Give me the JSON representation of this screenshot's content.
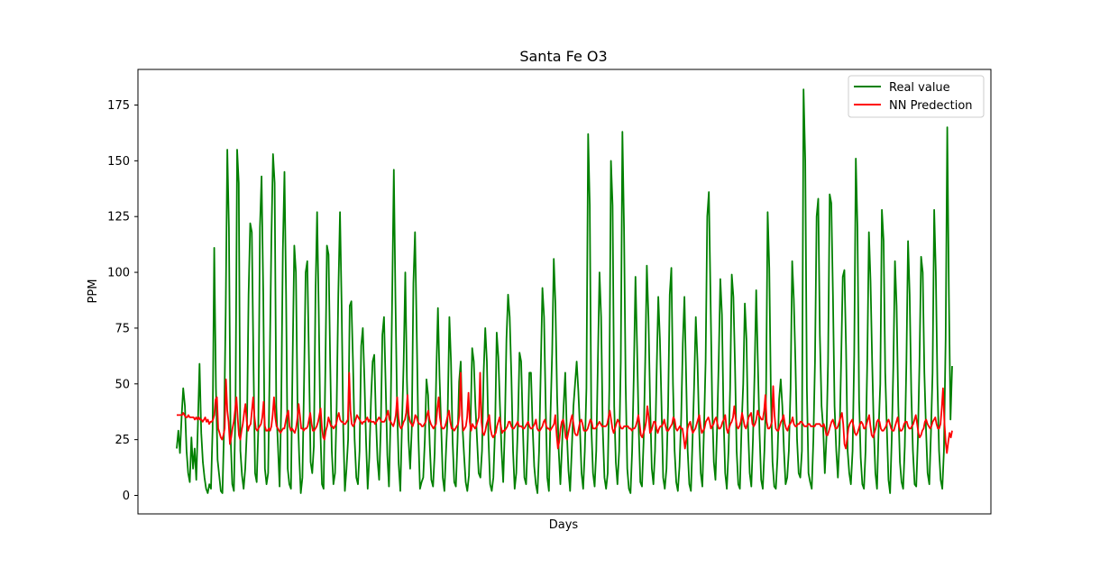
{
  "chart_data": {
    "type": "line",
    "title": "Santa Fe O3",
    "xlabel": "Days",
    "ylabel": "PPM",
    "ylim": [
      -8,
      190
    ],
    "yticks": [
      0,
      25,
      50,
      75,
      100,
      125,
      150,
      175
    ],
    "xticks_visible": false,
    "grid": false,
    "legend_position": "top-right",
    "series": [
      {
        "name": "Real value",
        "color": "#008000",
        "values": [
          21,
          29,
          19,
          35,
          48,
          40,
          20,
          10,
          6,
          26,
          12,
          21,
          7,
          32,
          59,
          28,
          15,
          8,
          3,
          1,
          5,
          3,
          30,
          111,
          48,
          16,
          9,
          2,
          1,
          30,
          82,
          155,
          120,
          27,
          5,
          2,
          40,
          155,
          140,
          20,
          9,
          3,
          12,
          30,
          90,
          122,
          118,
          60,
          10,
          6,
          30,
          120,
          143,
          90,
          12,
          5,
          10,
          60,
          115,
          153,
          140,
          40,
          22,
          4,
          40,
          110,
          145,
          90,
          12,
          5,
          3,
          60,
          112,
          100,
          40,
          18,
          1,
          8,
          50,
          100,
          105,
          60,
          15,
          10,
          22,
          90,
          127,
          83,
          30,
          5,
          3,
          55,
          112,
          108,
          60,
          20,
          5,
          10,
          40,
          90,
          127,
          85,
          30,
          2,
          12,
          25,
          85,
          87,
          60,
          25,
          8,
          5,
          20,
          67,
          75,
          52,
          24,
          3,
          17,
          43,
          60,
          63,
          35,
          16,
          7,
          30,
          72,
          80,
          50,
          18,
          4,
          35,
          90,
          146,
          88,
          40,
          14,
          2,
          33,
          60,
          100,
          52,
          25,
          12,
          30,
          95,
          118,
          75,
          27,
          3,
          6,
          8,
          25,
          52,
          45,
          23,
          7,
          4,
          19,
          55,
          84,
          53,
          31,
          8,
          2,
          20,
          36,
          80,
          60,
          24,
          6,
          4,
          24,
          51,
          60,
          32,
          18,
          6,
          2,
          9,
          33,
          66,
          60,
          40,
          25,
          10,
          8,
          20,
          55,
          75,
          60,
          25,
          5,
          2,
          8,
          30,
          73,
          62,
          40,
          20,
          6,
          30,
          70,
          90,
          80,
          53,
          20,
          3,
          10,
          32,
          64,
          60,
          32,
          8,
          5,
          25,
          55,
          55,
          31,
          13,
          5,
          1,
          20,
          55,
          93,
          80,
          40,
          8,
          2,
          37,
          64,
          106,
          86,
          44,
          20,
          5,
          22,
          40,
          55,
          28,
          11,
          2,
          20,
          40,
          50,
          60,
          47,
          30,
          10,
          3,
          20,
          48,
          162,
          130,
          30,
          10,
          4,
          20,
          60,
          100,
          80,
          30,
          8,
          3,
          10,
          48,
          150,
          130,
          40,
          15,
          5,
          20,
          60,
          163,
          120,
          50,
          12,
          3,
          1,
          20,
          53,
          98,
          66,
          30,
          6,
          4,
          24,
          60,
          103,
          80,
          40,
          12,
          5,
          20,
          56,
          89,
          70,
          40,
          8,
          3,
          12,
          40,
          90,
          102,
          50,
          20,
          6,
          2,
          13,
          35,
          68,
          89,
          55,
          20,
          5,
          2,
          25,
          50,
          80,
          60,
          30,
          10,
          4,
          30,
          60,
          125,
          136,
          90,
          40,
          15,
          7,
          30,
          60,
          97,
          81,
          35,
          10,
          3,
          20,
          48,
          99,
          89,
          58,
          20,
          5,
          3,
          30,
          50,
          86,
          70,
          30,
          10,
          4,
          25,
          55,
          92,
          60,
          28,
          7,
          3,
          20,
          45,
          127,
          102,
          45,
          15,
          4,
          3,
          17,
          43,
          52,
          40,
          20,
          5,
          8,
          20,
          48,
          105,
          88,
          60,
          25,
          10,
          8,
          20,
          182,
          150,
          48,
          10,
          6,
          3,
          25,
          60,
          125,
          133,
          72,
          40,
          30,
          10,
          26,
          60,
          135,
          131,
          90,
          40,
          20,
          8,
          25,
          60,
          98,
          101,
          67,
          20,
          10,
          5,
          20,
          63,
          151,
          120,
          43,
          17,
          5,
          3,
          20,
          60,
          118,
          96,
          60,
          30,
          10,
          3,
          30,
          50,
          128,
          114,
          55,
          30,
          7,
          1,
          25,
          58,
          105,
          85,
          40,
          15,
          6,
          3,
          22,
          60,
          114,
          90,
          46,
          20,
          5,
          4,
          25,
          60,
          107,
          100,
          55,
          30,
          10,
          5,
          28,
          55,
          128,
          100,
          50,
          20,
          7,
          3,
          20,
          70,
          165,
          90,
          34,
          58
        ]
      },
      {
        "name": "NN Predection",
        "color": "#ff0000",
        "values": [
          36,
          36,
          36,
          36,
          36,
          37,
          36,
          35,
          35,
          36,
          35,
          35,
          35,
          35,
          34,
          35,
          34,
          35,
          34,
          34,
          33,
          34,
          35,
          33,
          34,
          32,
          33,
          33,
          34,
          36,
          43,
          44,
          30,
          28,
          26,
          25,
          27,
          30,
          52,
          38,
          33,
          23,
          26,
          30,
          33,
          38,
          44,
          35,
          27,
          25,
          29,
          32,
          37,
          41,
          33,
          29,
          31,
          32,
          38,
          44,
          35,
          30,
          29,
          30,
          31,
          32,
          35,
          42,
          31,
          29,
          29,
          30,
          29,
          31,
          36,
          44,
          35,
          31,
          30,
          29,
          28,
          29,
          30,
          30,
          33,
          36,
          38,
          31,
          29,
          30,
          29,
          28,
          30,
          34,
          41,
          36,
          30,
          30,
          29,
          30,
          30,
          31,
          34,
          37,
          32,
          29,
          29,
          30,
          31,
          33,
          36,
          39,
          30,
          26,
          25,
          29,
          31,
          35,
          33,
          31,
          31,
          30,
          31,
          32,
          35,
          37,
          34,
          33,
          33,
          32,
          32,
          33,
          34,
          55,
          38,
          32,
          31,
          32,
          34,
          36,
          35,
          34,
          33,
          32,
          33,
          33,
          34,
          35,
          33,
          34,
          33,
          33,
          33,
          32,
          33,
          34,
          35,
          34,
          33,
          33,
          33,
          34,
          36,
          38,
          34,
          33,
          32,
          31,
          33,
          36,
          44,
          35,
          31,
          30,
          31,
          33,
          34,
          37,
          45,
          36,
          33,
          32,
          31,
          33,
          36,
          35,
          33,
          32,
          32,
          31,
          31,
          32,
          33,
          36,
          38,
          34,
          32,
          31,
          30,
          31,
          32,
          39,
          44,
          35,
          31,
          30,
          30,
          31,
          33,
          36,
          38,
          33,
          30,
          30,
          29,
          30,
          31,
          32,
          36,
          55,
          35,
          29,
          30,
          31,
          35,
          46,
          33,
          29,
          32,
          31,
          30,
          31,
          33,
          35,
          55,
          33,
          28,
          27,
          29,
          32,
          34,
          36,
          30,
          27,
          26,
          27,
          28,
          31,
          33,
          35,
          31,
          28,
          29,
          29,
          30,
          31,
          33,
          33,
          31,
          30,
          30,
          31,
          32,
          33,
          31,
          31,
          31,
          30,
          30,
          31,
          32,
          33,
          31,
          30,
          30,
          31,
          32,
          34,
          30,
          29,
          29,
          30,
          31,
          33,
          34,
          31,
          30,
          30,
          29,
          30,
          31,
          32,
          36,
          27,
          21,
          24,
          30,
          33,
          34,
          31,
          26,
          25,
          28,
          31,
          34,
          36,
          32,
          28,
          27,
          27,
          30,
          33,
          34,
          32,
          29,
          29,
          29,
          30,
          32,
          34,
          33,
          30,
          30,
          30,
          31,
          32,
          33,
          32,
          31,
          31,
          31,
          31,
          32,
          35,
          38,
          34,
          30,
          28,
          30,
          32,
          34,
          33,
          31,
          30,
          30,
          31,
          31,
          31,
          31,
          30,
          30,
          29,
          30,
          30,
          31,
          33,
          36,
          32,
          27,
          26,
          28,
          30,
          33,
          40,
          35,
          28,
          29,
          31,
          33,
          33,
          30,
          28,
          30,
          31,
          31,
          32,
          34,
          31,
          29,
          29,
          30,
          31,
          32,
          35,
          34,
          30,
          29,
          30,
          31,
          30,
          30,
          26,
          21,
          25,
          30,
          32,
          33,
          30,
          28,
          29,
          30,
          32,
          34,
          36,
          31,
          28,
          29,
          30,
          33,
          34,
          35,
          33,
          30,
          31,
          32,
          34,
          35,
          32,
          30,
          30,
          31,
          33,
          34,
          36,
          30,
          28,
          30,
          32,
          33,
          35,
          40,
          35,
          31,
          30,
          31,
          33,
          37,
          34,
          31,
          30,
          32,
          35,
          36,
          37,
          32,
          31,
          32,
          34,
          38,
          36,
          35,
          34,
          34,
          38,
          45,
          33,
          30,
          30,
          31,
          33,
          49,
          36,
          30,
          29,
          29,
          31,
          33,
          34,
          36,
          32,
          30,
          29,
          31,
          32,
          33,
          35,
          32,
          31,
          31,
          32,
          32,
          33,
          33,
          32,
          31,
          31,
          31,
          32,
          32,
          31,
          31,
          31,
          31,
          32,
          32,
          32,
          32,
          31,
          31,
          32,
          30,
          27,
          27,
          29,
          31,
          33,
          34,
          32,
          30,
          30,
          31,
          33,
          35,
          37,
          32,
          23,
          21,
          25,
          30,
          32,
          33,
          34,
          31,
          28,
          27,
          28,
          30,
          32,
          33,
          32,
          30,
          30,
          32,
          34,
          36,
          31,
          27,
          26,
          28,
          30,
          33,
          34,
          33,
          30,
          29,
          29,
          30,
          31,
          33,
          34,
          32,
          30,
          29,
          29,
          31,
          33,
          35,
          31,
          29,
          29,
          30,
          32,
          33,
          33,
          31,
          30,
          30,
          31,
          32,
          34,
          36,
          32,
          28,
          26,
          27,
          29,
          30,
          33,
          34,
          32,
          31,
          30,
          31,
          33,
          34,
          35,
          32,
          30,
          30,
          32,
          39,
          48,
          33,
          24,
          19,
          24,
          28,
          26,
          29
        ]
      }
    ]
  }
}
